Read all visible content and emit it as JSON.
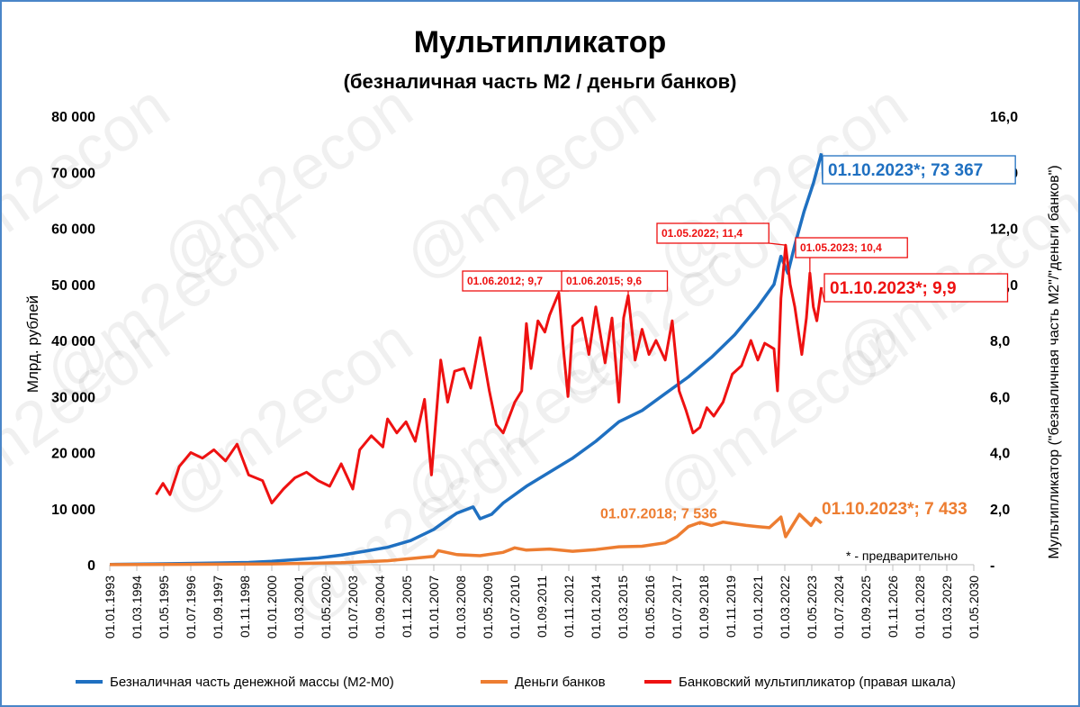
{
  "watermark": "@m2econ",
  "chart_data": {
    "type": "line",
    "title": "Мультипликатор",
    "subtitle": "(безналичная часть М2 / деньги банков)",
    "ylabel_left": "Млрд. рублей",
    "ylabel_right": "Мультипликатор (\"безналичная часть М2\"/\"деньги банков\")",
    "left_axis": {
      "min": 0,
      "max": 80000,
      "ticks": [
        "0",
        "10 000",
        "20 000",
        "30 000",
        "40 000",
        "50 000",
        "60 000",
        "70 000",
        "80 000"
      ]
    },
    "right_axis": {
      "min": 0,
      "max": 16,
      "ticks": [
        "-",
        "2,0",
        "4,0",
        "6,0",
        "8,0",
        "10,0",
        "12,0",
        "14,0",
        "16,0"
      ]
    },
    "x_tick_labels": [
      "01.01.1993",
      "01.03.1994",
      "01.05.1995",
      "01.07.1996",
      "01.09.1997",
      "01.11.1998",
      "01.01.2000",
      "01.03.2001",
      "01.05.2002",
      "01.07.2003",
      "01.09.2004",
      "01.11.2005",
      "01.01.2007",
      "01.03.2008",
      "01.05.2009",
      "01.07.2010",
      "01.09.2011",
      "01.11.2012",
      "01.01.2014",
      "01.03.2015",
      "01.05.2016",
      "01.07.2017",
      "01.09.2018",
      "01.11.2019",
      "01.01.2021",
      "01.03.2022",
      "01.05.2023",
      "01.07.2024",
      "01.09.2025",
      "01.11.2026",
      "01.01.2028",
      "01.03.2029",
      "01.05.2030"
    ],
    "legend": {
      "position": "bottom"
    },
    "series": [
      {
        "name": "Безналичная часть денежной массы (М2-М0)",
        "axis": "left",
        "color": "#1f70c1",
        "points": [
          [
            1993.0,
            50
          ],
          [
            1995.0,
            150
          ],
          [
            1997.0,
            250
          ],
          [
            1999.0,
            400
          ],
          [
            2000.0,
            600
          ],
          [
            2001.0,
            900
          ],
          [
            2002.0,
            1200
          ],
          [
            2003.0,
            1700
          ],
          [
            2004.0,
            2400
          ],
          [
            2005.0,
            3100
          ],
          [
            2006.0,
            4300
          ],
          [
            2007.0,
            6300
          ],
          [
            2007.5,
            7800
          ],
          [
            2008.0,
            9200
          ],
          [
            2008.7,
            10300
          ],
          [
            2009.0,
            8200
          ],
          [
            2009.5,
            9000
          ],
          [
            2010.0,
            11000
          ],
          [
            2011.0,
            14000
          ],
          [
            2012.0,
            16500
          ],
          [
            2013.0,
            19000
          ],
          [
            2014.0,
            22000
          ],
          [
            2015.0,
            25500
          ],
          [
            2016.0,
            27500
          ],
          [
            2017.0,
            30500
          ],
          [
            2018.0,
            33500
          ],
          [
            2019.0,
            37000
          ],
          [
            2020.0,
            41000
          ],
          [
            2021.0,
            46000
          ],
          [
            2021.7,
            50000
          ],
          [
            2022.0,
            55000
          ],
          [
            2022.3,
            52000
          ],
          [
            2022.6,
            57000
          ],
          [
            2023.0,
            63000
          ],
          [
            2023.4,
            68000
          ],
          [
            2023.75,
            73367
          ]
        ]
      },
      {
        "name": "Деньги банков",
        "axis": "left",
        "color": "#ed7d31",
        "points": [
          [
            1993.0,
            10
          ],
          [
            1996.0,
            60
          ],
          [
            2000.0,
            150
          ],
          [
            2003.0,
            350
          ],
          [
            2005.0,
            700
          ],
          [
            2007.0,
            1500
          ],
          [
            2007.2,
            2500
          ],
          [
            2008.0,
            1800
          ],
          [
            2009.0,
            1600
          ],
          [
            2010.0,
            2200
          ],
          [
            2010.5,
            3000
          ],
          [
            2011.0,
            2600
          ],
          [
            2012.0,
            2800
          ],
          [
            2013.0,
            2400
          ],
          [
            2014.0,
            2700
          ],
          [
            2015.0,
            3200
          ],
          [
            2016.0,
            3300
          ],
          [
            2017.0,
            3900
          ],
          [
            2017.5,
            5000
          ],
          [
            2018.0,
            6800
          ],
          [
            2018.5,
            7536
          ],
          [
            2019.0,
            7000
          ],
          [
            2019.5,
            7600
          ],
          [
            2020.0,
            7300
          ],
          [
            2020.5,
            7000
          ],
          [
            2021.0,
            6800
          ],
          [
            2021.5,
            6600
          ],
          [
            2022.0,
            8500
          ],
          [
            2022.2,
            5000
          ],
          [
            2022.5,
            7000
          ],
          [
            2022.8,
            9000
          ],
          [
            2023.0,
            8200
          ],
          [
            2023.3,
            7000
          ],
          [
            2023.5,
            8300
          ],
          [
            2023.75,
            7433
          ]
        ]
      },
      {
        "name": "Банковский мультипликатор (правая шкала)",
        "axis": "right",
        "color": "#ee1111",
        "points": [
          [
            1995.0,
            2.5
          ],
          [
            1995.3,
            2.9
          ],
          [
            1995.6,
            2.5
          ],
          [
            1996.0,
            3.5
          ],
          [
            1996.5,
            4.0
          ],
          [
            1997.0,
            3.8
          ],
          [
            1997.5,
            4.1
          ],
          [
            1998.0,
            3.7
          ],
          [
            1998.5,
            4.3
          ],
          [
            1999.0,
            3.2
          ],
          [
            1999.6,
            3.0
          ],
          [
            2000.0,
            2.2
          ],
          [
            2000.5,
            2.7
          ],
          [
            2001.0,
            3.1
          ],
          [
            2001.5,
            3.3
          ],
          [
            2002.0,
            3.0
          ],
          [
            2002.5,
            2.8
          ],
          [
            2003.0,
            3.6
          ],
          [
            2003.5,
            2.7
          ],
          [
            2003.8,
            4.1
          ],
          [
            2004.3,
            4.6
          ],
          [
            2004.8,
            4.2
          ],
          [
            2005.0,
            5.2
          ],
          [
            2005.4,
            4.7
          ],
          [
            2005.8,
            5.1
          ],
          [
            2006.2,
            4.4
          ],
          [
            2006.6,
            5.9
          ],
          [
            2006.9,
            3.2
          ],
          [
            2007.3,
            7.3
          ],
          [
            2007.6,
            5.8
          ],
          [
            2007.9,
            6.9
          ],
          [
            2008.3,
            7.0
          ],
          [
            2008.6,
            6.3
          ],
          [
            2009.0,
            8.1
          ],
          [
            2009.4,
            6.2
          ],
          [
            2009.7,
            5.0
          ],
          [
            2010.0,
            4.7
          ],
          [
            2010.5,
            5.8
          ],
          [
            2010.8,
            6.2
          ],
          [
            2011.0,
            8.6
          ],
          [
            2011.2,
            7.0
          ],
          [
            2011.5,
            8.7
          ],
          [
            2011.8,
            8.3
          ],
          [
            2012.0,
            8.9
          ],
          [
            2012.4,
            9.7
          ],
          [
            2012.6,
            7.7
          ],
          [
            2012.8,
            6.0
          ],
          [
            2013.0,
            8.5
          ],
          [
            2013.4,
            8.8
          ],
          [
            2013.7,
            7.5
          ],
          [
            2014.0,
            9.2
          ],
          [
            2014.4,
            7.2
          ],
          [
            2014.7,
            8.8
          ],
          [
            2015.0,
            5.8
          ],
          [
            2015.2,
            8.8
          ],
          [
            2015.4,
            9.6
          ],
          [
            2015.7,
            7.3
          ],
          [
            2016.0,
            8.4
          ],
          [
            2016.3,
            7.5
          ],
          [
            2016.6,
            8.0
          ],
          [
            2017.0,
            7.3
          ],
          [
            2017.3,
            8.7
          ],
          [
            2017.6,
            6.2
          ],
          [
            2017.9,
            5.5
          ],
          [
            2018.2,
            4.7
          ],
          [
            2018.5,
            4.9
          ],
          [
            2018.8,
            5.6
          ],
          [
            2019.1,
            5.3
          ],
          [
            2019.5,
            5.8
          ],
          [
            2019.9,
            6.8
          ],
          [
            2020.3,
            7.1
          ],
          [
            2020.7,
            8.0
          ],
          [
            2021.0,
            7.3
          ],
          [
            2021.3,
            7.9
          ],
          [
            2021.7,
            7.7
          ],
          [
            2021.85,
            6.2
          ],
          [
            2022.0,
            9.5
          ],
          [
            2022.2,
            11.4
          ],
          [
            2022.4,
            10.0
          ],
          [
            2022.6,
            9.2
          ],
          [
            2022.9,
            7.5
          ],
          [
            2023.1,
            8.8
          ],
          [
            2023.25,
            10.4
          ],
          [
            2023.4,
            9.2
          ],
          [
            2023.55,
            8.7
          ],
          [
            2023.75,
            9.9
          ]
        ]
      }
    ],
    "annotations": [
      {
        "text": "01.06.2012;  9,7",
        "series": "Банковский мультипликатор (правая шкала)",
        "x": 2012.4,
        "y": 9.7,
        "axis": "right",
        "color": "#ee1111",
        "size": "small"
      },
      {
        "text": "01.06.2015;  9,6",
        "series": "Банковский мультипликатор (правая шкала)",
        "x": 2015.4,
        "y": 9.6,
        "axis": "right",
        "color": "#ee1111",
        "size": "small"
      },
      {
        "text": "01.05.2022;  11,4",
        "series": "Банковский мультипликатор (правая шкала)",
        "x": 2022.2,
        "y": 11.4,
        "axis": "right",
        "color": "#ee1111",
        "size": "small"
      },
      {
        "text": "01.05.2023;  10,4",
        "series": "Банковский мультипликатор (правая шкала)",
        "x": 2023.25,
        "y": 10.4,
        "axis": "right",
        "color": "#ee1111",
        "size": "small"
      },
      {
        "text": "01.10.2023*;   9,9",
        "series": "Банковский мультипликатор (правая шкала)",
        "x": 2023.75,
        "y": 9.9,
        "axis": "right",
        "color": "#ee1111",
        "size": "large"
      },
      {
        "text": "01.10.2023*; 73 367",
        "series": "Безналичная часть денежной массы (М2-М0)",
        "x": 2023.75,
        "y": 73367,
        "axis": "left",
        "color": "#1f70c1",
        "size": "large"
      },
      {
        "text": "01.07.2018; 7 536",
        "series": "Деньги банков",
        "x": 2018.5,
        "y": 7536,
        "axis": "left",
        "color": "#ed7d31",
        "size": "medium"
      },
      {
        "text": "01.10.2023*; 7 433",
        "series": "Деньги банков",
        "x": 2023.75,
        "y": 7433,
        "axis": "left",
        "color": "#ed7d31",
        "size": "large"
      }
    ],
    "footnote": "* - предварительно",
    "grid": false
  }
}
